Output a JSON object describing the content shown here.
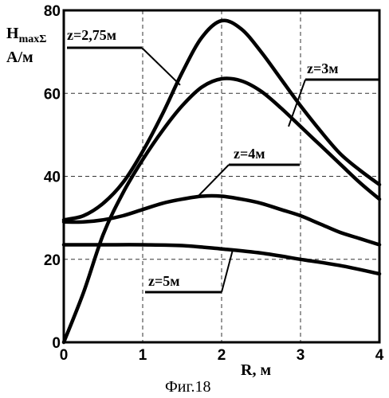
{
  "chart_data": {
    "type": "line",
    "caption": "Фиг.18",
    "ylabel": {
      "main": "H",
      "sub": "maxΣ",
      "unit": "А/м"
    },
    "xlabel": "R,  м",
    "xlim": [
      0,
      4
    ],
    "ylim": [
      0,
      80
    ],
    "x_ticks": [
      "0",
      "1",
      "2",
      "3",
      "4"
    ],
    "y_ticks": [
      "0",
      "20",
      "40",
      "60",
      "80"
    ],
    "grid": "dashed",
    "series": [
      {
        "name": "z=2,75м",
        "x": [
          0,
          0.25,
          0.5,
          0.75,
          1.0,
          1.25,
          1.5,
          1.75,
          2.0,
          2.25,
          2.5,
          2.75,
          3.0,
          3.25,
          3.5,
          3.75,
          4.0
        ],
        "y": [
          29.5,
          30.5,
          33.5,
          38.5,
          46,
          55,
          65,
          73.5,
          77.5,
          75.5,
          70,
          63.5,
          57,
          51,
          45.5,
          41.5,
          38
        ]
      },
      {
        "name": "z=3м",
        "x": [
          0,
          0.25,
          0.5,
          0.75,
          1.0,
          1.25,
          1.5,
          1.75,
          2.0,
          2.25,
          2.5,
          2.75,
          3.0,
          3.25,
          3.5,
          3.75,
          4.0
        ],
        "y": [
          0,
          12,
          26,
          36,
          44,
          51,
          57,
          61.5,
          63.5,
          63,
          60.5,
          56.5,
          52,
          47.5,
          43,
          38.5,
          34.5
        ]
      },
      {
        "name": "z=4м",
        "x": [
          0,
          0.25,
          0.5,
          0.75,
          1.0,
          1.25,
          1.5,
          1.75,
          2.0,
          2.25,
          2.5,
          2.75,
          3.0,
          3.25,
          3.5,
          3.75,
          4.0
        ],
        "y": [
          29,
          29,
          29.5,
          30.5,
          32,
          33.5,
          34.5,
          35.2,
          35.2,
          34.5,
          33.5,
          32,
          30.5,
          28.5,
          26.5,
          25,
          23.5
        ]
      },
      {
        "name": "z=5м",
        "x": [
          0,
          0.5,
          1.0,
          1.5,
          2.0,
          2.5,
          3.0,
          3.5,
          4.0
        ],
        "y": [
          23.5,
          23.5,
          23.5,
          23.3,
          22.5,
          21.5,
          20,
          18.5,
          16.5
        ]
      }
    ]
  }
}
